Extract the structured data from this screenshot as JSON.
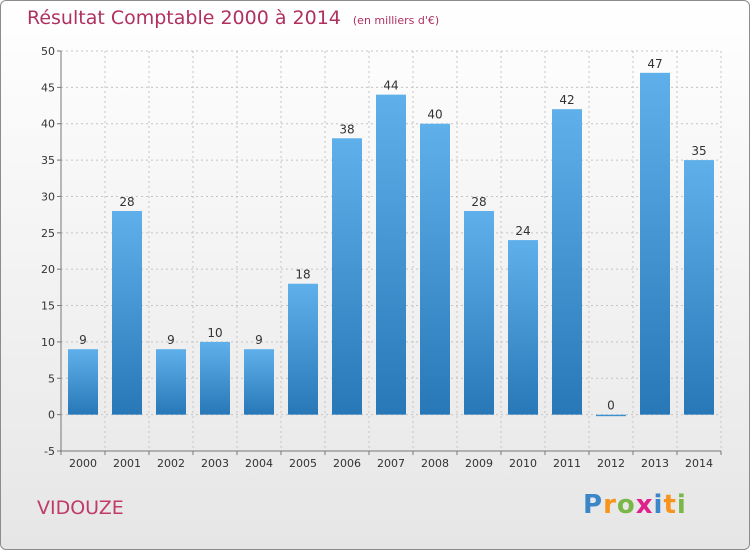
{
  "title": "Résultat Comptable 2000 à 2014",
  "subtitle": "(en milliers d'€)",
  "commune": "VIDOUZE",
  "logo": {
    "letters": [
      "P",
      "r",
      "o",
      "x",
      "i",
      "t",
      "i"
    ],
    "colors": [
      "#3a86c8",
      "#f7941d",
      "#7ab648",
      "#e0218a",
      "#3a86c8",
      "#f7941d",
      "#7ab648"
    ]
  },
  "colors": {
    "bar_top": "#5fb0ea",
    "bar_bottom": "#2878b8",
    "title": "#b03060"
  },
  "chart_data": {
    "type": "bar",
    "categories": [
      "2000",
      "2001",
      "2002",
      "2003",
      "2004",
      "2005",
      "2006",
      "2007",
      "2008",
      "2009",
      "2010",
      "2011",
      "2012",
      "2013",
      "2014"
    ],
    "values": [
      9,
      28,
      9,
      10,
      9,
      18,
      38,
      44,
      40,
      28,
      24,
      42,
      0,
      47,
      35
    ],
    "ylim": [
      -5,
      50
    ],
    "yticks": [
      -5,
      0,
      5,
      10,
      15,
      20,
      25,
      30,
      35,
      40,
      45,
      50
    ],
    "grid": true,
    "data_labels": true
  }
}
